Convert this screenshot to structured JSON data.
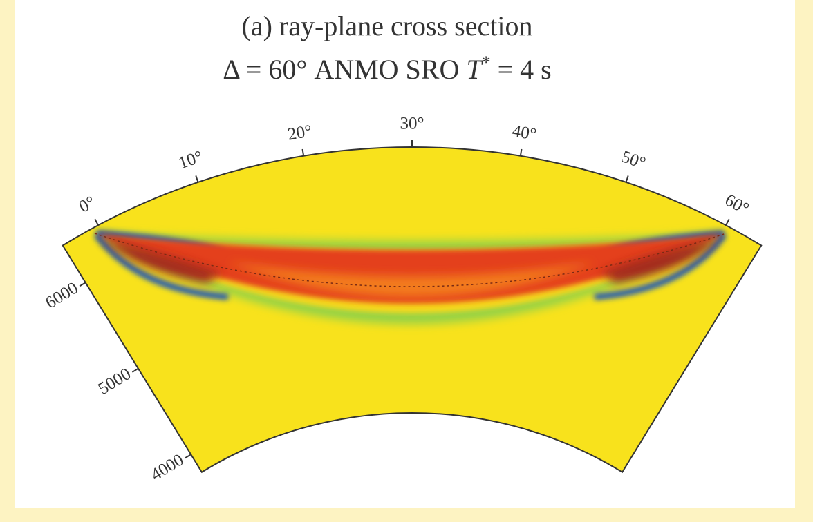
{
  "title": "(a) ray-plane cross section",
  "subtitle": {
    "prefix": "Δ = 60°  ANMO SRO ",
    "variable": "T",
    "superscript": "*",
    "suffix": " = 4 s"
  },
  "angle_labels": [
    "0°",
    "10°",
    "20°",
    "30°",
    "40°",
    "50°",
    "60°"
  ],
  "radius_labels": [
    "6000",
    "5000",
    "4000"
  ]
}
